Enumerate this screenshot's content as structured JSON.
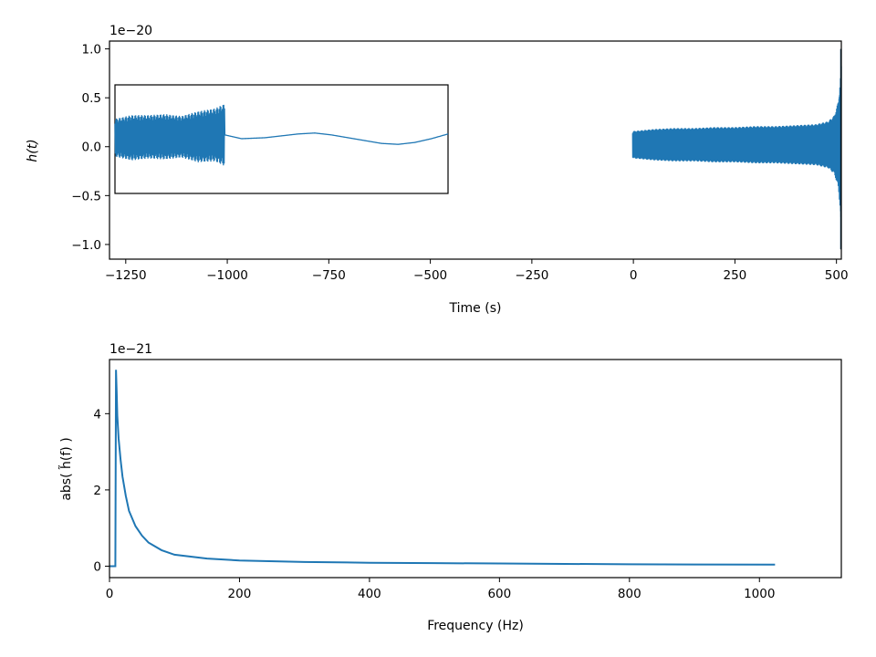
{
  "chart_data": [
    {
      "type": "line",
      "xlabel": "Time (s)",
      "ylabel": "h(t)",
      "offset_text": "1e−20",
      "xlim": [
        -1290,
        512
      ],
      "ylim": [
        -1.15,
        1.08
      ],
      "xticks": [
        -1250,
        -1000,
        -750,
        -500,
        -250,
        0,
        250,
        500
      ],
      "xtick_labels": [
        "−1250",
        "−1000",
        "−750",
        "−500",
        "−250",
        "0",
        "250",
        "500"
      ],
      "yticks": [
        -1.0,
        -0.5,
        0.0,
        0.5,
        1.0
      ],
      "ytick_labels": [
        "−1.0",
        "−0.5",
        "0.0",
        "0.5",
        "1.0"
      ],
      "grid": false,
      "series": [
        {
          "color": "#1f77b4",
          "description_points": {
            "x": [
              -2,
              0,
              50,
              100,
              150,
              200,
              250,
              300,
              350,
              400,
              450,
              480,
              495,
              505,
              510,
              512
            ],
            "envelope": [
              0.13,
              0.14,
              0.16,
              0.17,
              0.17,
              0.18,
              0.18,
              0.19,
              0.19,
              0.2,
              0.21,
              0.24,
              0.3,
              0.45,
              0.7,
              1.0
            ]
          }
        }
      ],
      "inset": {
        "xlim": [
          0,
          1
        ],
        "ylim": [
          -0.5,
          0.65
        ],
        "border_color": "#000000",
        "envelope_points": {
          "x": [
            0.0,
            0.05,
            0.1,
            0.15,
            0.2,
            0.25,
            0.3,
            0.33,
            0.38,
            0.45,
            0.5,
            0.55,
            0.6,
            0.65,
            0.7,
            0.75,
            0.8,
            0.85,
            0.9,
            0.95,
            1.0
          ],
          "center": [
            0.09,
            0.09,
            0.1,
            0.1,
            0.1,
            0.1,
            0.12,
            0.12,
            0.08,
            0.09,
            0.11,
            0.13,
            0.14,
            0.12,
            0.09,
            0.06,
            0.03,
            0.02,
            0.04,
            0.08,
            0.13
          ],
          "half_amplitude": [
            0.2,
            0.24,
            0.23,
            0.24,
            0.22,
            0.27,
            0.28,
            0.33,
            0.01,
            0.01,
            0.01,
            0.01,
            0.01,
            0.01,
            0.01,
            0.01,
            0.01,
            0.01,
            0.01,
            0.01,
            0.01
          ]
        }
      }
    },
    {
      "type": "line",
      "xlabel": "Frequency (Hz)",
      "ylabel": "abs( h̃(f) )",
      "offset_text": "1e−21",
      "xlim": [
        0,
        1126
      ],
      "ylim": [
        -0.3,
        5.42
      ],
      "xticks": [
        0,
        200,
        400,
        600,
        800,
        1000
      ],
      "xtick_labels": [
        "0",
        "200",
        "400",
        "600",
        "800",
        "1000"
      ],
      "yticks": [
        0,
        2,
        4
      ],
      "ytick_labels": [
        "0",
        "2",
        "4"
      ],
      "grid": false,
      "series": [
        {
          "color": "#1f77b4",
          "x": [
            0,
            8,
            9,
            10,
            11,
            12,
            14,
            17,
            20,
            25,
            30,
            40,
            50,
            60,
            80,
            100,
            150,
            200,
            300,
            400,
            500,
            600,
            700,
            800,
            900,
            1024
          ],
          "y": [
            0,
            0,
            0,
            5.15,
            4.6,
            3.95,
            3.35,
            2.8,
            2.35,
            1.85,
            1.45,
            1.05,
            0.8,
            0.62,
            0.42,
            0.3,
            0.2,
            0.15,
            0.11,
            0.09,
            0.08,
            0.07,
            0.06,
            0.05,
            0.045,
            0.04
          ]
        }
      ]
    }
  ]
}
